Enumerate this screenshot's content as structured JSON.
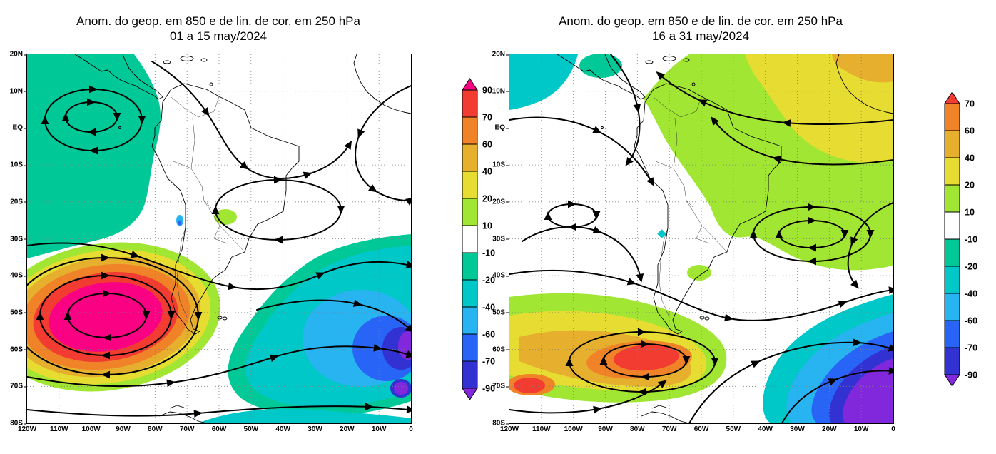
{
  "palette": {
    "magenta": "#fa0082",
    "red": "#f23c32",
    "orange": "#f08228",
    "orange_yellow": "#e6af2d",
    "yellow": "#e6dc32",
    "yellow_green": "#a0e632",
    "white": "#ffffff",
    "green": "#00c896",
    "teal": "#00c8c8",
    "cyan": "#28b4f0",
    "blue": "#2864f5",
    "indigo": "#3232d2",
    "purple": "#8228dc"
  },
  "chart_data": [
    {
      "type": "heatmap",
      "subtype": "filled-contour geopotential anomaly map with streamlines",
      "title": "Anom. do geop. em 850 e de lin. de cor. em 250 hPa",
      "subtitle": "01 a 15 may/2024",
      "xlabel": "",
      "ylabel": "",
      "lat_ticks": [
        "20N",
        "10N",
        "EQ",
        "10S",
        "20S",
        "30S",
        "40S",
        "50S",
        "60S",
        "70S",
        "80S"
      ],
      "lon_ticks": [
        "120W",
        "110W",
        "100W",
        "90W",
        "80W",
        "70W",
        "60W",
        "50W",
        "40W",
        "30W",
        "20W",
        "10W",
        "0"
      ],
      "lat_range": [
        "20N",
        "80S"
      ],
      "lon_range": [
        "120W",
        "0"
      ],
      "grid": "dotted",
      "legend_position": "right-colorbar",
      "colorbar": {
        "labels": [
          "90",
          "70",
          "60",
          "40",
          "20",
          "10",
          "-10",
          "-20",
          "-40",
          "-60",
          "-70",
          "-90"
        ],
        "colors": [
          "#fa0082",
          "#f23c32",
          "#f08228",
          "#e6af2d",
          "#e6dc32",
          "#a0e632",
          "#ffffff",
          "#00c896",
          "#00c8c8",
          "#28b4f0",
          "#2864f5",
          "#3232d2",
          "#8228dc"
        ]
      },
      "features": [
        {
          "sign": "negative",
          "band": "-10 a -20",
          "region": "Pacifico tropical leste, 20N-35S a oeste de ~75W",
          "center": "~10S 100W"
        },
        {
          "sign": "positive",
          "band": "> +90 (nucleo)",
          "region": "Pacifico Sul, 35S-70S entre 120W e 65W",
          "center": "~50S 100W"
        },
        {
          "sign": "negative",
          "band": "ate < -90 (nucleos junto a 0W)",
          "region": "Atlantico Sul, 30S-75S a leste de ~65W",
          "center": "~47S 5W"
        },
        {
          "sign": "negative",
          "band": "-20 a -40",
          "region": "faixa junto a 75S-80S",
          "center": "~77S 20W"
        }
      ]
    },
    {
      "type": "heatmap",
      "subtype": "filled-contour geopotential anomaly map with streamlines",
      "title": "Anom. do geop. em 850 e de lin. de cor. em 250 hPa",
      "subtitle": "16 a 31 may/2024",
      "xlabel": "",
      "ylabel": "",
      "lat_ticks": [
        "20N",
        "10N",
        "EQ",
        "10S",
        "20S",
        "30S",
        "40S",
        "50S",
        "60S",
        "70S",
        "80S"
      ],
      "lon_ticks": [
        "120W",
        "110W",
        "100W",
        "90W",
        "80W",
        "70W",
        "60W",
        "50W",
        "40W",
        "30W",
        "20W",
        "10W",
        "0"
      ],
      "lat_range": [
        "20N",
        "80S"
      ],
      "lon_range": [
        "120W",
        "0"
      ],
      "grid": "dotted",
      "legend_position": "right-colorbar",
      "colorbar": {
        "labels": [
          "70",
          "60",
          "40",
          "20",
          "10",
          "-10",
          "-20",
          "-40",
          "-60",
          "-70",
          "-90"
        ],
        "colors": [
          "#f23c32",
          "#f08228",
          "#e6af2d",
          "#e6dc32",
          "#a0e632",
          "#ffffff",
          "#00c896",
          "#00c8c8",
          "#28b4f0",
          "#2864f5",
          "#3232d2",
          "#8228dc"
        ]
      },
      "features": [
        {
          "sign": "positive",
          "band": "+10 a +40",
          "region": "America do Sul tropical e Atlantico adjacente, 10N-30S",
          "center": "~10S 30W"
        },
        {
          "sign": "positive",
          "band": "+70 (nucleo)",
          "region": "Pacifico Sudeste / sul do Chile, 40S-65S",
          "center": "~57S 80W"
        },
        {
          "sign": "negative",
          "band": "< -90 (nucleo extenso)",
          "region": "Atlantico Sul / Antartida, ao sul de 45S e leste de 55W",
          "center": "~65S 15W"
        },
        {
          "sign": "negative",
          "band": "-20 a -40",
          "region": "canto noroeste do dominio, ~120W-100W / 5N-20N",
          "center": "~15N 112W"
        }
      ]
    }
  ]
}
